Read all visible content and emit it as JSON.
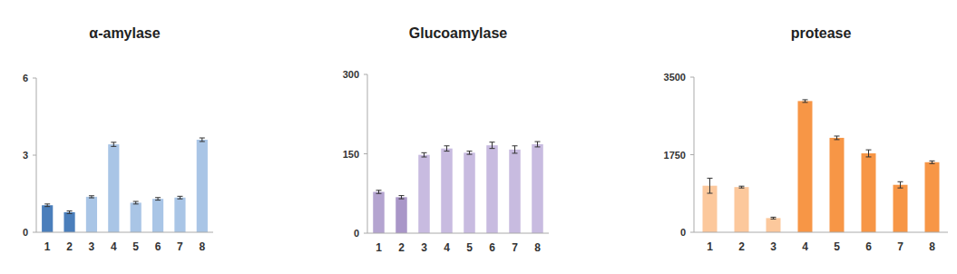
{
  "chart_data": [
    {
      "type": "bar",
      "title": "α-amylase",
      "categories": [
        "1",
        "2",
        "3",
        "4",
        "5",
        "6",
        "7",
        "8"
      ],
      "values": [
        1.05,
        0.78,
        1.38,
        3.42,
        1.15,
        1.3,
        1.35,
        3.6
      ],
      "errors": [
        0.05,
        0.05,
        0.04,
        0.08,
        0.05,
        0.05,
        0.05,
        0.07
      ],
      "colors": [
        "#4a7ebb",
        "#4a7ebb",
        "#a9c5e6",
        "#a9c5e6",
        "#a9c5e6",
        "#a9c5e6",
        "#a9c5e6",
        "#a9c5e6"
      ],
      "ylim": [
        0,
        6
      ],
      "yticks": [
        0,
        3,
        6
      ],
      "grid": false
    },
    {
      "type": "bar",
      "title": "Glucoamylase",
      "categories": [
        "1",
        "2",
        "3",
        "4",
        "5",
        "6",
        "7",
        "8"
      ],
      "values": [
        78,
        68,
        148,
        160,
        152,
        166,
        158,
        168
      ],
      "errors": [
        3,
        3,
        4,
        5,
        3,
        6,
        7,
        5
      ],
      "colors": [
        "#b4a4d0",
        "#a996c8",
        "#c8bbe0",
        "#c8bbe0",
        "#c8bbe0",
        "#c8bbe0",
        "#c8bbe0",
        "#c8bbe0"
      ],
      "ylim": [
        0,
        300
      ],
      "yticks": [
        0,
        150,
        300
      ],
      "grid": false
    },
    {
      "type": "bar",
      "title": "protease",
      "categories": [
        "1",
        "2",
        "3",
        "4",
        "5",
        "6",
        "7",
        "8"
      ],
      "values": [
        1050,
        1020,
        320,
        2960,
        2130,
        1780,
        1070,
        1580
      ],
      "errors": [
        170,
        20,
        20,
        30,
        40,
        80,
        70,
        30
      ],
      "colors": [
        "#fcc89c",
        "#fcc89c",
        "#fcc89c",
        "#f79646",
        "#f79646",
        "#f79646",
        "#f79646",
        "#f79646"
      ],
      "ylim": [
        0,
        3500
      ],
      "yticks": [
        0,
        1750,
        3500
      ],
      "grid": false
    }
  ]
}
